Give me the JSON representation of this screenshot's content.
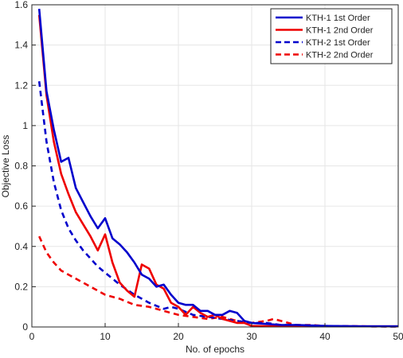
{
  "chart_data": {
    "type": "line",
    "title": "",
    "xlabel": "No. of epochs",
    "ylabel": "Objective Loss",
    "xlim": [
      0,
      50
    ],
    "ylim": [
      0,
      1.6
    ],
    "xticks": [
      0,
      10,
      20,
      30,
      40,
      50
    ],
    "xtick_labels": [
      "0",
      "10",
      "20",
      "30",
      "40",
      "50"
    ],
    "yticks": [
      0,
      0.2,
      0.4,
      0.6,
      0.8,
      1,
      1.2,
      1.4,
      1.6
    ],
    "ytick_labels": [
      "0",
      "0.2",
      "0.4",
      "0.6",
      "0.8",
      "1",
      "1.2",
      "1.4",
      "1.6"
    ],
    "grid": true,
    "legend_position": "top-right",
    "series": [
      {
        "name": "KTH-1 1st Order",
        "color": "#0000cc",
        "dash": "solid",
        "x": [
          1,
          2,
          3,
          4,
          5,
          6,
          7,
          8,
          9,
          10,
          11,
          12,
          13,
          14,
          15,
          16,
          17,
          18,
          19,
          20,
          21,
          22,
          23,
          24,
          25,
          26,
          27,
          28,
          29,
          30,
          32,
          34,
          36,
          40,
          45,
          50
        ],
        "y": [
          1.58,
          1.17,
          0.98,
          0.82,
          0.84,
          0.69,
          0.62,
          0.55,
          0.49,
          0.54,
          0.44,
          0.41,
          0.37,
          0.32,
          0.26,
          0.24,
          0.2,
          0.21,
          0.16,
          0.12,
          0.11,
          0.11,
          0.08,
          0.08,
          0.06,
          0.06,
          0.08,
          0.07,
          0.03,
          0.02,
          0.015,
          0.01,
          0.01,
          0.005,
          0.003,
          0.003
        ]
      },
      {
        "name": "KTH-1 2nd Order",
        "color": "#ee0000",
        "dash": "solid",
        "x": [
          1,
          2,
          3,
          4,
          5,
          6,
          7,
          8,
          9,
          10,
          11,
          12,
          13,
          14,
          15,
          16,
          17,
          18,
          19,
          20,
          21,
          22,
          23,
          24,
          25,
          26,
          27,
          28,
          29,
          30,
          32,
          34,
          36,
          40,
          45,
          50
        ],
        "y": [
          1.55,
          1.15,
          0.92,
          0.76,
          0.66,
          0.57,
          0.51,
          0.45,
          0.38,
          0.46,
          0.32,
          0.22,
          0.18,
          0.15,
          0.31,
          0.29,
          0.21,
          0.19,
          0.12,
          0.1,
          0.06,
          0.1,
          0.07,
          0.05,
          0.06,
          0.04,
          0.03,
          0.02,
          0.02,
          0.005,
          0.004,
          0.004,
          0.004,
          0.003,
          0.003,
          0.003
        ]
      },
      {
        "name": "KTH-2 1st Order",
        "color": "#0000cc",
        "dash": "dashed",
        "x": [
          1,
          2,
          3,
          4,
          5,
          6,
          7,
          8,
          9,
          10,
          12,
          14,
          16,
          18,
          19,
          20,
          22,
          24,
          26,
          28,
          30,
          32,
          34,
          36,
          40,
          45,
          50
        ],
        "y": [
          1.22,
          0.92,
          0.72,
          0.58,
          0.49,
          0.43,
          0.38,
          0.34,
          0.3,
          0.27,
          0.21,
          0.16,
          0.12,
          0.09,
          0.1,
          0.09,
          0.06,
          0.05,
          0.04,
          0.03,
          0.02,
          0.02,
          0.01,
          0.01,
          0.005,
          0.003,
          0.002
        ]
      },
      {
        "name": "KTH-2 2nd Order",
        "color": "#ee0000",
        "dash": "dashed",
        "x": [
          1,
          2,
          3,
          4,
          5,
          6,
          7,
          8,
          9,
          10,
          12,
          14,
          16,
          18,
          20,
          22,
          24,
          26,
          28,
          30,
          32,
          33,
          34,
          36,
          38,
          40,
          45,
          50
        ],
        "y": [
          0.45,
          0.37,
          0.32,
          0.28,
          0.26,
          0.24,
          0.22,
          0.2,
          0.18,
          0.16,
          0.14,
          0.11,
          0.1,
          0.08,
          0.06,
          0.05,
          0.04,
          0.05,
          0.03,
          0.02,
          0.03,
          0.04,
          0.03,
          0.01,
          0.01,
          0.005,
          0.003,
          0.002
        ]
      }
    ]
  }
}
